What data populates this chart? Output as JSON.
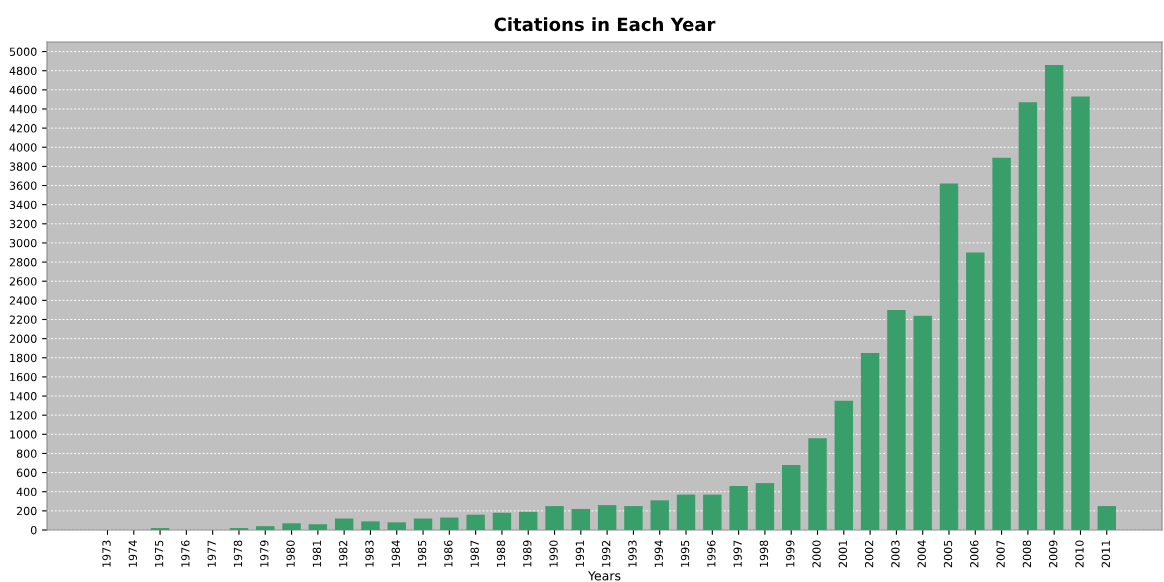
{
  "chart_data": {
    "type": "bar",
    "title": "Citations in Each Year",
    "xlabel": "Years",
    "categories": [
      "1973",
      "1974",
      "1975",
      "1976",
      "1977",
      "1978",
      "1979",
      "1980",
      "1981",
      "1982",
      "1983",
      "1984",
      "1985",
      "1986",
      "1987",
      "1988",
      "1989",
      "1990",
      "1991",
      "1992",
      "1993",
      "1994",
      "1995",
      "1996",
      "1997",
      "1998",
      "1999",
      "2000",
      "2001",
      "2002",
      "2003",
      "2004",
      "2005",
      "2006",
      "2007",
      "2008",
      "2009",
      "2010",
      "2011"
    ],
    "values": [
      0,
      0,
      20,
      0,
      0,
      20,
      40,
      70,
      60,
      120,
      90,
      80,
      120,
      130,
      160,
      180,
      190,
      250,
      220,
      260,
      250,
      310,
      370,
      370,
      460,
      490,
      680,
      960,
      1350,
      1850,
      2300,
      2240,
      3620,
      2900,
      3890,
      4470,
      4860,
      4530,
      250
    ],
    "color": "#389e6a",
    "ylim": [
      0,
      5100
    ],
    "yticks": [
      0,
      200,
      400,
      600,
      800,
      1000,
      1200,
      1400,
      1600,
      1800,
      2000,
      2200,
      2400,
      2600,
      2800,
      3000,
      3200,
      3400,
      3600,
      3800,
      4000,
      4200,
      4400,
      4600,
      4800,
      5000
    ],
    "grid": "y"
  }
}
